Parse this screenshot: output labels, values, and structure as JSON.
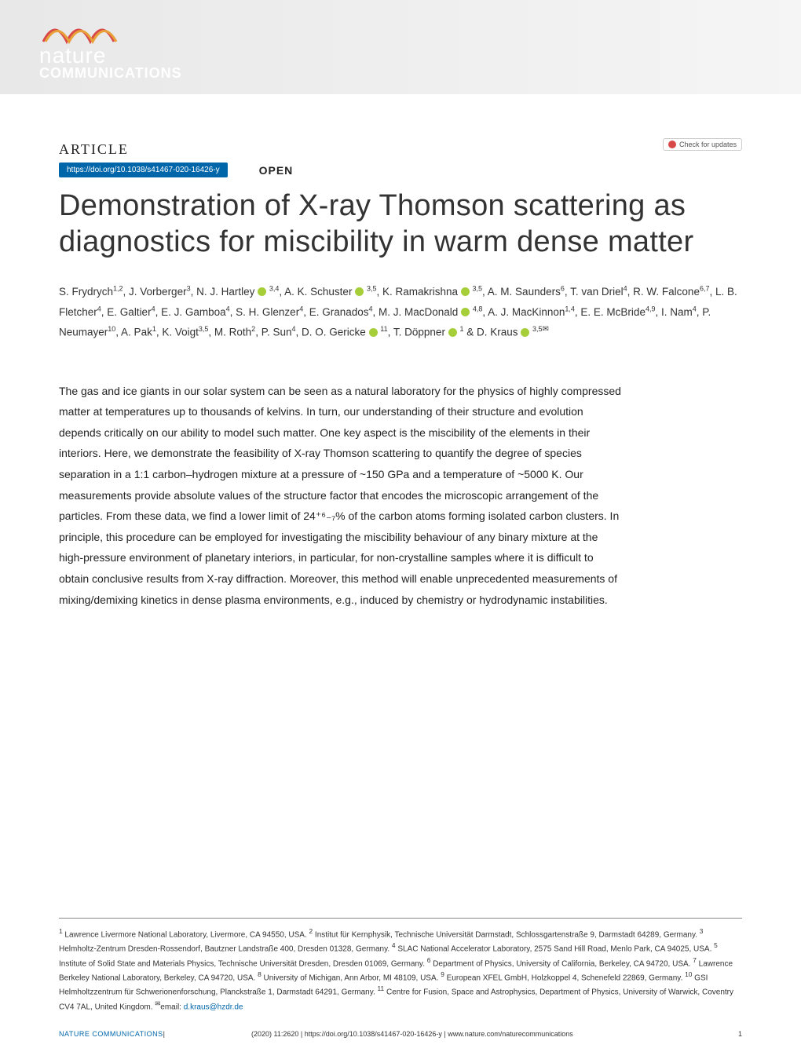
{
  "logo": {
    "line1": "nature",
    "line2": "COMMUNICATIONS"
  },
  "header": {
    "article_label": "ARTICLE",
    "check_updates": "Check for updates",
    "doi": "https://doi.org/10.1038/s41467-020-16426-y",
    "open": "OPEN"
  },
  "title": "Demonstration of X-ray Thomson scattering as diagnostics for miscibility in warm dense matter",
  "authors_html": "S. Frydrych<sup>1,2</sup>, J. Vorberger<sup>3</sup>, N. J. Hartley <span class='orcid'></span> <sup>3,4</sup>, A. K. Schuster <span class='orcid'></span> <sup>3,5</sup>, K. Ramakrishna <span class='orcid'></span> <sup>3,5</sup>, A. M. Saunders<sup>6</sup>, T. van Driel<sup>4</sup>, R. W. Falcone<sup>6,7</sup>, L. B. Fletcher<sup>4</sup>, E. Galtier<sup>4</sup>, E. J. Gamboa<sup>4</sup>, S. H. Glenzer<sup>4</sup>, E. Granados<sup>4</sup>, M. J. MacDonald <span class='orcid'></span> <sup>4,8</sup>, A. J. MacKinnon<sup>1,4</sup>, E. E. McBride<sup>4,9</sup>, I. Nam<sup>4</sup>, P. Neumayer<sup>10</sup>, A. Pak<sup>1</sup>, K. Voigt<sup>3,5</sup>, M. Roth<sup>2</sup>, P. Sun<sup>4</sup>, D. O. Gericke <span class='orcid'></span> <sup>11</sup>, T. Döppner <span class='orcid'></span> <sup>1</sup> & D. Kraus <span class='orcid'></span> <sup>3,5<span class='envelope'>✉</span></sup>",
  "abstract": "The gas and ice giants in our solar system can be seen as a natural laboratory for the physics of highly compressed matter at temperatures up to thousands of kelvins. In turn, our understanding of their structure and evolution depends critically on our ability to model such matter. One key aspect is the miscibility of the elements in their interiors. Here, we demonstrate the feasibility of X-ray Thomson scattering to quantify the degree of species separation in a 1:1 carbon–hydrogen mixture at a pressure of ~150 GPa and a temperature of ~5000 K. Our measurements provide absolute values of the structure factor that encodes the microscopic arrangement of the particles. From these data, we find a lower limit of 24⁺⁶₋₇% of the carbon atoms forming isolated carbon clusters. In principle, this procedure can be employed for investigating the miscibility behaviour of any binary mixture at the high-pressure environment of planetary interiors, in particular, for non-crystalline samples where it is difficult to obtain conclusive results from X-ray diffraction. Moreover, this method will enable unprecedented measurements of mixing/demixing kinetics in dense plasma environments, e.g., induced by chemistry or hydrodynamic instabilities.",
  "affiliations": "<sup>1</sup> Lawrence Livermore National Laboratory, Livermore, CA 94550, USA. <sup>2</sup> Institut für Kernphysik, Technische Universität Darmstadt, Schlossgartenstraße 9, Darmstadt 64289, Germany. <sup>3</sup> Helmholtz-Zentrum Dresden-Rossendorf, Bautzner Landstraße 400, Dresden 01328, Germany. <sup>4</sup> SLAC National Accelerator Laboratory, 2575 Sand Hill Road, Menlo Park, CA 94025, USA. <sup>5</sup> Institute of Solid State and Materials Physics, Technische Universität Dresden, Dresden 01069, Germany. <sup>6</sup> Department of Physics, University of California, Berkeley, CA 94720, USA. <sup>7</sup> Lawrence Berkeley National Laboratory, Berkeley, CA 94720, USA. <sup>8</sup> University of Michigan, Ann Arbor, MI 48109, USA. <sup>9</sup> European XFEL GmbH, Holzkoppel 4, Schenefeld 22869, Germany. <sup>10</sup> GSI Helmholtzzentrum für Schwerionenforschung, Planckstraße 1, Darmstadt 64291, Germany. <sup>11</sup> Centre for Fusion, Space and Astrophysics, Department of Physics, University of Warwick, Coventry CV4 7AL, United Kingdom. <sup>✉</sup>email: <a href='#'>d.kraus@hzdr.de</a>",
  "footer": {
    "journal": "NATURE COMMUNICATIONS",
    "citation": "(2020) 11:2620 | https://doi.org/10.1038/s41467-020-16426-y | www.nature.com/naturecommunications",
    "page": "1"
  },
  "colors": {
    "brand_blue": "#0066aa",
    "orcid_green": "#a6ce39",
    "check_red": "#d94848"
  }
}
